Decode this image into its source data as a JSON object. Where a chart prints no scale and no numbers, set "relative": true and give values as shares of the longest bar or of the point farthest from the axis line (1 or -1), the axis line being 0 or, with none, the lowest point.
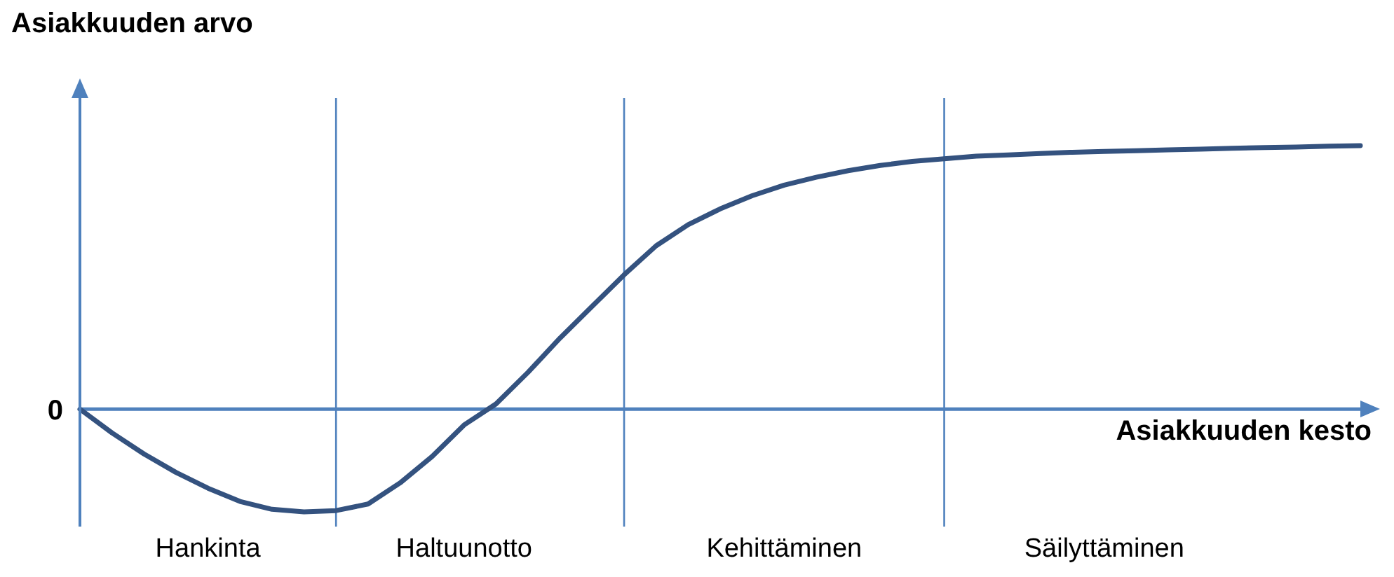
{
  "chart_data": {
    "type": "line",
    "relative": true,
    "ylabel": "Asiakkuuden arvo",
    "xlabel": "Asiakkuuden kesto",
    "grid": "x",
    "ref_lines": [
      {
        "axis": "y",
        "value": 0,
        "label": "0",
        "color": "#4f81bd"
      }
    ],
    "categories": [
      null,
      null,
      null,
      null,
      "Hankinta",
      null,
      null,
      null,
      null,
      null,
      null,
      null,
      "Haltuunotto",
      null,
      null,
      null,
      null,
      null,
      null,
      null,
      null,
      null,
      "Kehittäminen",
      null,
      null,
      null,
      null,
      null,
      null,
      null,
      null,
      null,
      "Säilyttäminen",
      null,
      null,
      null,
      null,
      null,
      null,
      null,
      null
    ],
    "series": [
      {
        "color": "#34527f",
        "values": [
          0,
          -0.09,
          -0.17,
          -0.24,
          -0.3,
          -0.35,
          -0.38,
          -0.39,
          -0.385,
          -0.36,
          -0.28,
          -0.18,
          -0.06,
          0.02,
          0.14,
          0.27,
          0.39,
          0.51,
          0.62,
          0.7,
          0.76,
          0.81,
          0.85,
          0.88,
          0.905,
          0.925,
          0.94,
          0.95,
          0.96,
          0.965,
          0.97,
          0.975,
          0.978,
          0.981,
          0.984,
          0.987,
          0.99,
          0.993,
          0.995,
          0.998,
          1
        ]
      }
    ]
  }
}
